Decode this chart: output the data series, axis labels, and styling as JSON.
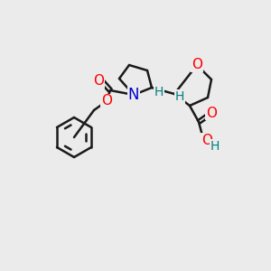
{
  "bg_color": "#ebebeb",
  "bond_color": "#1a1a1a",
  "bond_width": 1.8,
  "atom_colors": {
    "O": "#ff0000",
    "N": "#0000cd",
    "C": "#1a1a1a",
    "H": "#008080"
  },
  "font_size": 11,
  "stereo_font_size": 10
}
